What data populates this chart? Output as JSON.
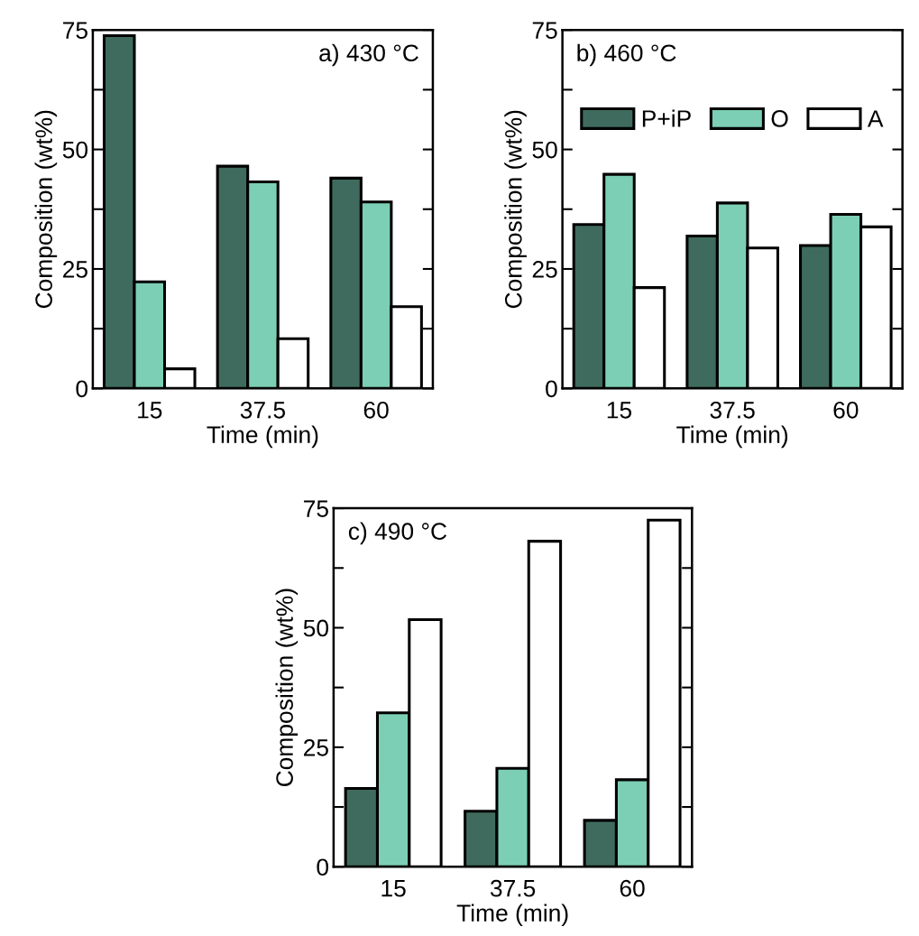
{
  "chart_data": [
    {
      "type": "bar",
      "annotations": [
        "a) 430 °C"
      ],
      "xlabel": "Time (min)",
      "ylabel": "Composition (wt%)",
      "categories": [
        "15",
        "37.5",
        "60"
      ],
      "ylim": [
        0,
        75
      ],
      "yticks": [
        0,
        {
          "value": 12.5,
          "label": null
        },
        25,
        {
          "value": 37.5,
          "label": null
        },
        50,
        {
          "value": 62.5,
          "label": null
        },
        75
      ],
      "grid": false,
      "series": [
        {
          "color": "#3f6b5e",
          "values": [
            73.8,
            46.5,
            44.0
          ]
        },
        {
          "color": "#7ccfb5",
          "values": [
            22.3,
            43.2,
            39.0
          ]
        },
        {
          "color": "#ffffff",
          "values": [
            4.1,
            10.4,
            17.1
          ]
        }
      ]
    },
    {
      "type": "bar",
      "annotations": [
        "b) 460 °C"
      ],
      "xlabel": "Time (min)",
      "ylabel": "Composition (wt%)",
      "categories": [
        "15",
        "37.5",
        "60"
      ],
      "ylim": [
        0,
        75
      ],
      "yticks": [
        0,
        {
          "value": 12.5,
          "label": null
        },
        25,
        {
          "value": 37.5,
          "label": null
        },
        50,
        {
          "value": 62.5,
          "label": null
        },
        75
      ],
      "grid": false,
      "legend": "top",
      "series": [
        {
          "name": "P+iP",
          "color": "#3f6b5e",
          "values": [
            34.3,
            31.9,
            29.9
          ]
        },
        {
          "name": "O",
          "color": "#7ccfb5",
          "values": [
            44.8,
            38.8,
            36.4
          ]
        },
        {
          "name": "A",
          "color": "#ffffff",
          "values": [
            21.1,
            29.4,
            33.8
          ]
        }
      ]
    },
    {
      "type": "bar",
      "annotations": [
        "c) 490 °C"
      ],
      "xlabel": "Time (min)",
      "ylabel": "Composition (wt%)",
      "categories": [
        "15",
        "37.5",
        "60"
      ],
      "ylim": [
        0,
        75
      ],
      "yticks": [
        0,
        {
          "value": 12.5,
          "label": null
        },
        25,
        {
          "value": 37.5,
          "label": null
        },
        50,
        {
          "value": 62.5,
          "label": null
        },
        75
      ],
      "grid": false,
      "series": [
        {
          "color": "#3f6b5e",
          "values": [
            16.4,
            11.6,
            9.7
          ]
        },
        {
          "color": "#7ccfb5",
          "values": [
            32.2,
            20.6,
            18.2
          ]
        },
        {
          "color": "#ffffff",
          "values": [
            51.7,
            68.1,
            72.5
          ]
        }
      ]
    }
  ]
}
